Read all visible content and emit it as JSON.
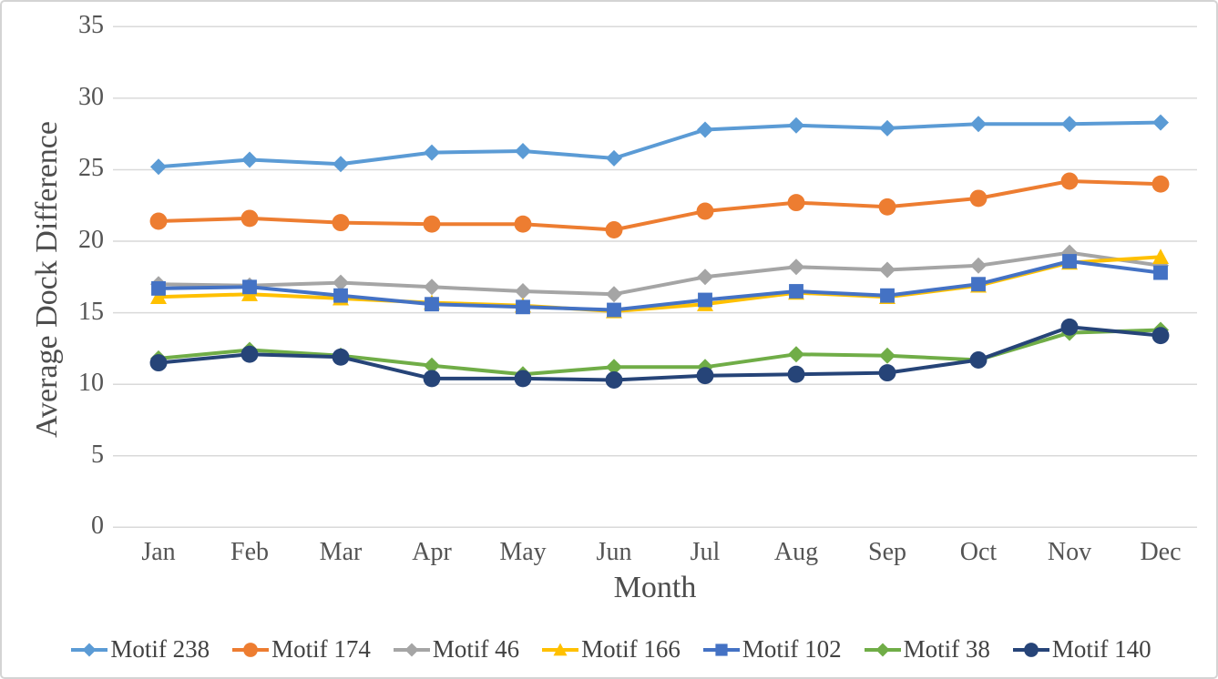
{
  "chart_data": {
    "type": "line",
    "title": "",
    "xlabel": "Month",
    "ylabel": "Average Dock Difference",
    "categories": [
      "Jan",
      "Feb",
      "Mar",
      "Apr",
      "May",
      "Jun",
      "Jul",
      "Aug",
      "Sep",
      "Oct",
      "Nov",
      "Dec"
    ],
    "y_ticks": [
      0,
      5,
      10,
      15,
      20,
      25,
      30,
      35
    ],
    "ylim": [
      0,
      35
    ],
    "grid": true,
    "gridline_color": "#d9d9d9",
    "legend_position": "bottom",
    "series": [
      {
        "name": "Motif 238",
        "color": "#5B9BD5",
        "marker": "diamond",
        "values": [
          25.2,
          25.7,
          25.4,
          26.2,
          26.3,
          25.8,
          27.8,
          28.1,
          27.9,
          28.2,
          28.2,
          28.3
        ]
      },
      {
        "name": "Motif 174",
        "color": "#ED7D31",
        "marker": "circle",
        "values": [
          21.4,
          21.6,
          21.3,
          21.2,
          21.2,
          20.8,
          22.1,
          22.7,
          22.4,
          23.0,
          24.2,
          24.0
        ]
      },
      {
        "name": "Motif 46",
        "color": "#A5A5A5",
        "marker": "diamond",
        "values": [
          17.0,
          16.9,
          17.1,
          16.8,
          16.5,
          16.3,
          17.5,
          18.2,
          18.0,
          18.3,
          19.2,
          18.3
        ]
      },
      {
        "name": "Motif 166",
        "color": "#FFC000",
        "marker": "triangle",
        "values": [
          16.1,
          16.3,
          16.0,
          15.7,
          15.5,
          15.1,
          15.6,
          16.4,
          16.1,
          16.9,
          18.5,
          18.9
        ]
      },
      {
        "name": "Motif 102",
        "color": "#4472C4",
        "marker": "square",
        "values": [
          16.7,
          16.8,
          16.2,
          15.6,
          15.4,
          15.2,
          15.9,
          16.5,
          16.2,
          17.0,
          18.6,
          17.8
        ]
      },
      {
        "name": "Motif 38",
        "color": "#70AD47",
        "marker": "diamond",
        "values": [
          11.8,
          12.4,
          12.0,
          11.3,
          10.7,
          11.2,
          11.2,
          12.1,
          12.0,
          11.7,
          13.6,
          13.8
        ]
      },
      {
        "name": "Motif 140",
        "color": "#264478",
        "marker": "circle",
        "values": [
          11.5,
          12.1,
          11.9,
          10.4,
          10.4,
          10.3,
          10.6,
          10.7,
          10.8,
          11.7,
          14.0,
          13.4
        ]
      }
    ]
  }
}
